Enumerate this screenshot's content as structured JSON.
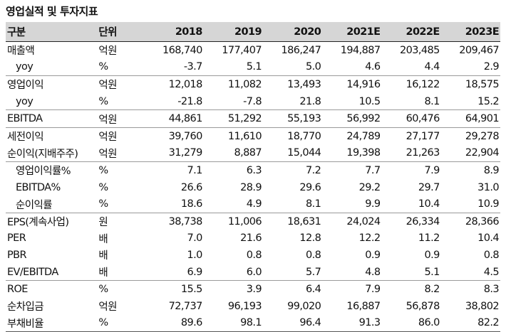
{
  "title": "영업실적 및 투자지표",
  "headers": {
    "label": "구분",
    "unit": "단위",
    "years": [
      "2018",
      "2019",
      "2020",
      "2021E",
      "2022E",
      "2023E"
    ]
  },
  "rows": [
    {
      "label": "매출액",
      "unit": "억원",
      "values": [
        "168,740",
        "177,407",
        "186,247",
        "194,887",
        "203,485",
        "209,467"
      ]
    },
    {
      "label": "yoy",
      "unit": "%",
      "values": [
        "-3.7",
        "5.1",
        "5.0",
        "4.6",
        "4.4",
        "2.9"
      ]
    },
    {
      "label": "영업이익",
      "unit": "억원",
      "values": [
        "12,018",
        "11,082",
        "13,493",
        "14,916",
        "16,122",
        "18,575"
      ]
    },
    {
      "label": "yoy",
      "unit": "%",
      "values": [
        "-21.8",
        "-7.8",
        "21.8",
        "10.5",
        "8.1",
        "15.2"
      ]
    },
    {
      "label": "EBITDA",
      "unit": "억원",
      "values": [
        "44,861",
        "51,292",
        "55,193",
        "56,992",
        "60,476",
        "64,901"
      ]
    },
    {
      "label": "세전이익",
      "unit": "억원",
      "values": [
        "39,760",
        "11,610",
        "18,770",
        "24,789",
        "27,177",
        "29,278"
      ]
    },
    {
      "label": "순이익(지배주주)",
      "unit": "억원",
      "values": [
        "31,279",
        "8,887",
        "15,044",
        "19,398",
        "21,263",
        "22,904"
      ]
    },
    {
      "label": "영업이익률%",
      "unit": "%",
      "values": [
        "7.1",
        "6.3",
        "7.2",
        "7.7",
        "7.9",
        "8.9"
      ]
    },
    {
      "label": "EBITDA%",
      "unit": "%",
      "values": [
        "26.6",
        "28.9",
        "29.6",
        "29.2",
        "29.7",
        "31.0"
      ]
    },
    {
      "label": "순이익률",
      "unit": "%",
      "values": [
        "18.6",
        "4.9",
        "8.1",
        "9.9",
        "10.4",
        "10.9"
      ]
    },
    {
      "label": "EPS(계속사업)",
      "unit": "원",
      "values": [
        "38,738",
        "11,006",
        "18,631",
        "24,024",
        "26,334",
        "28,366"
      ]
    },
    {
      "label": "PER",
      "unit": "배",
      "values": [
        "7.0",
        "21.6",
        "12.8",
        "12.2",
        "11.2",
        "10.4"
      ]
    },
    {
      "label": "PBR",
      "unit": "배",
      "values": [
        "1.0",
        "0.8",
        "0.8",
        "0.9",
        "0.9",
        "0.8"
      ]
    },
    {
      "label": "EV/EBITDA",
      "unit": "배",
      "values": [
        "6.9",
        "6.0",
        "5.7",
        "4.8",
        "5.1",
        "4.5"
      ]
    },
    {
      "label": "ROE",
      "unit": "%",
      "values": [
        "15.5",
        "3.9",
        "6.4",
        "7.9",
        "8.2",
        "8.3"
      ]
    },
    {
      "label": "순차입금",
      "unit": "억원",
      "values": [
        "72,737",
        "96,193",
        "99,020",
        "16,887",
        "56,878",
        "38,802"
      ]
    },
    {
      "label": "부채비율",
      "unit": "%",
      "values": [
        "89.6",
        "98.1",
        "96.4",
        "91.3",
        "86.0",
        "82.2"
      ]
    }
  ]
}
